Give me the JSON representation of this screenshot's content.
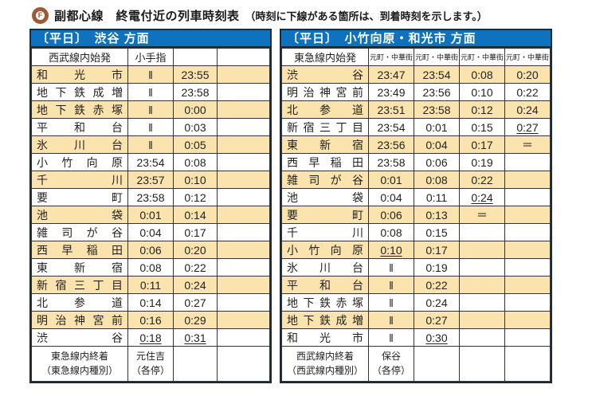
{
  "title": {
    "logo_letter": "F",
    "text": "副都心線　終電付近の列車時刻表",
    "note": "（時刻に下線がある箇所は、到着時刻を示します。）"
  },
  "colors": {
    "header_blue": "#0F72BE",
    "row_cream": "#FAE3AC",
    "line_brown": "#9A5B35",
    "border_dark": "#1C2B3A",
    "grid_line": "#333333"
  },
  "left_table": {
    "direction_header": "〔平日〕　渋谷 方面",
    "col_headers": [
      "西武線内始発",
      "小手指",
      "",
      ""
    ],
    "rows": [
      {
        "station": "和光市",
        "cells": [
          "‖",
          "23:55",
          ""
        ]
      },
      {
        "station": "地下鉄成増",
        "cells": [
          "‖",
          "23:58",
          ""
        ]
      },
      {
        "station": "地下鉄赤塚",
        "cells": [
          "‖",
          "0:00",
          ""
        ]
      },
      {
        "station": "平和台",
        "cells": [
          "‖",
          "0:03",
          ""
        ]
      },
      {
        "station": "氷川台",
        "cells": [
          "‖",
          "0:05",
          ""
        ]
      },
      {
        "station": "小竹向原",
        "cells": [
          "23:54",
          "0:08",
          ""
        ]
      },
      {
        "station": "千川",
        "cells": [
          "23:57",
          "0:10",
          ""
        ]
      },
      {
        "station": "要町",
        "cells": [
          "23:58",
          "0:12",
          ""
        ]
      },
      {
        "station": "池袋",
        "cells": [
          "0:01",
          "0:14",
          ""
        ]
      },
      {
        "station": "雑司が谷",
        "cells": [
          "0:04",
          "0:17",
          ""
        ]
      },
      {
        "station": "西早稲田",
        "cells": [
          "0:06",
          "0:20",
          ""
        ]
      },
      {
        "station": "東新宿",
        "cells": [
          "0:08",
          "0:22",
          ""
        ]
      },
      {
        "station": "新宿三丁目",
        "cells": [
          "0:11",
          "0:24",
          ""
        ]
      },
      {
        "station": "北参道",
        "cells": [
          "0:14",
          "0:27",
          ""
        ]
      },
      {
        "station": "明治神宮前",
        "cells": [
          "0:16",
          "0:29",
          ""
        ]
      },
      {
        "station": "渋谷",
        "cells": [
          {
            "t": "0:18",
            "underline": true
          },
          {
            "t": "0:31",
            "underline": true
          },
          ""
        ]
      }
    ],
    "footer": {
      "label_line1": "東急線内終着",
      "label_line2": "（東急線内種別）",
      "value_line1": "元住吉",
      "value_line2": "（各停）"
    }
  },
  "right_table": {
    "direction_header": "〔平日〕　小竹向原・和光市 方面",
    "col_headers": [
      "東急線内始発",
      "元町・中華街",
      "元町・中華街",
      "元町・中華街",
      "元町・中華街"
    ],
    "rows": [
      {
        "station": "渋谷",
        "cells": [
          "23:47",
          "23:54",
          "0:08",
          "0:20"
        ]
      },
      {
        "station": "明治神宮前",
        "cells": [
          "23:49",
          "23:56",
          "0:10",
          "0:22"
        ]
      },
      {
        "station": "北参道",
        "cells": [
          "23:51",
          "23:58",
          "0:12",
          "0:24"
        ]
      },
      {
        "station": "新宿三丁目",
        "cells": [
          "23:54",
          "0:01",
          "0:15",
          {
            "t": "0:27",
            "underline": true
          }
        ]
      },
      {
        "station": "東新宿",
        "cells": [
          "23:56",
          "0:04",
          "0:17",
          "＝"
        ]
      },
      {
        "station": "西早稲田",
        "cells": [
          "23:58",
          "0:06",
          "0:19",
          ""
        ]
      },
      {
        "station": "雑司が谷",
        "cells": [
          "0:01",
          "0:08",
          "0:22",
          ""
        ]
      },
      {
        "station": "池袋",
        "cells": [
          "0:04",
          "0:11",
          {
            "t": "0:24",
            "underline": true
          },
          ""
        ]
      },
      {
        "station": "要町",
        "cells": [
          "0:06",
          "0:13",
          "＝",
          ""
        ]
      },
      {
        "station": "千川",
        "cells": [
          "0:08",
          "0:15",
          "",
          ""
        ]
      },
      {
        "station": "小竹向原",
        "cells": [
          {
            "t": "0:10",
            "underline": true
          },
          "0:17",
          "",
          ""
        ]
      },
      {
        "station": "氷川台",
        "cells": [
          "‖",
          "0:19",
          "",
          ""
        ]
      },
      {
        "station": "平和台",
        "cells": [
          "‖",
          "0:22",
          "",
          ""
        ]
      },
      {
        "station": "地下鉄赤塚",
        "cells": [
          "‖",
          "0:24",
          "",
          ""
        ]
      },
      {
        "station": "地下鉄成増",
        "cells": [
          "‖",
          "0:27",
          "",
          ""
        ]
      },
      {
        "station": "和光市",
        "cells": [
          "‖",
          {
            "t": "0:30",
            "underline": true
          },
          "",
          ""
        ]
      }
    ],
    "footer": {
      "label_line1": "西武線内終着",
      "label_line2": "（西武線内種別）",
      "value_line1": "保谷",
      "value_line2": "（各停）"
    }
  }
}
